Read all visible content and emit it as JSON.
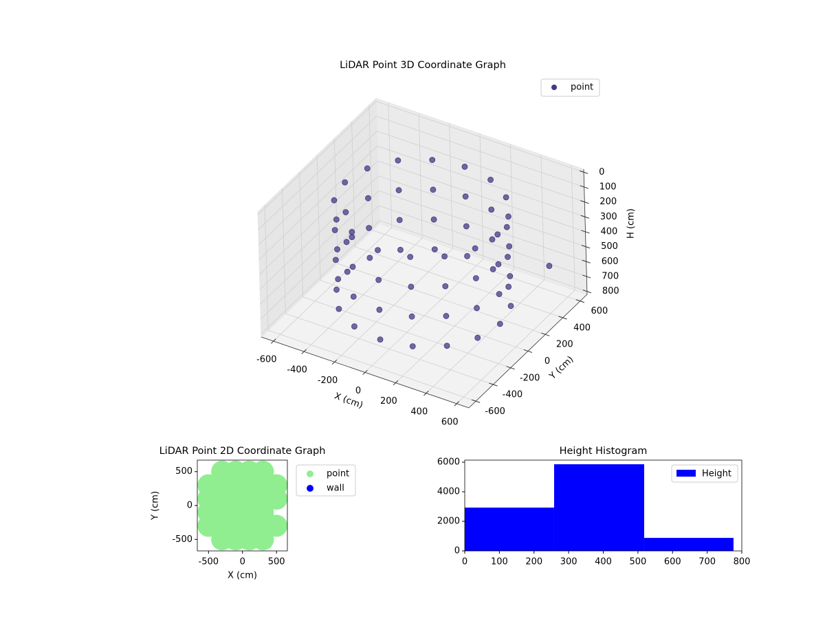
{
  "chart_data": [
    {
      "type": "scatter3d",
      "title": "LiDAR Point 3D Coordinate Graph",
      "xlabel": "X (cm)",
      "ylabel": "Y (cm)",
      "zlabel": "H (cm)",
      "xlim": [
        -680,
        680
      ],
      "ylim": [
        -680,
        680
      ],
      "zlim": [
        820,
        -20
      ],
      "xticks": [
        -600,
        -400,
        -200,
        0,
        200,
        400,
        600
      ],
      "yticks": [
        -600,
        -400,
        -200,
        0,
        200,
        400,
        600
      ],
      "zticks": [
        0,
        100,
        200,
        300,
        400,
        500,
        600,
        700,
        800
      ],
      "grid": true,
      "legend": "upper right",
      "series": [
        {
          "name": "point",
          "color": "#443983",
          "x": [
            500,
            462,
            354,
            191,
            0,
            -191,
            -354,
            -462,
            -500,
            -462,
            -354,
            -191,
            0,
            191,
            354,
            462,
            500,
            462,
            354,
            191,
            0,
            -191,
            -354,
            -462,
            -500,
            -462,
            -354,
            -191,
            0,
            191,
            354,
            462,
            500,
            462,
            354,
            191,
            0,
            -191,
            -354,
            -462,
            -500,
            -462,
            -354,
            -191,
            0,
            191,
            354,
            462,
            500,
            462,
            354,
            191,
            0,
            -191,
            -354,
            -462,
            -500,
            -462,
            -354,
            -191,
            0,
            191,
            354,
            462,
            -640,
            600
          ],
          "y": [
            0,
            191,
            354,
            462,
            500,
            462,
            354,
            191,
            0,
            -191,
            -354,
            -462,
            -500,
            -462,
            -354,
            -191,
            0,
            191,
            354,
            462,
            500,
            462,
            354,
            191,
            0,
            -191,
            -354,
            -462,
            -500,
            -462,
            -354,
            -191,
            0,
            191,
            354,
            462,
            500,
            462,
            354,
            191,
            0,
            -191,
            -354,
            -462,
            -500,
            -462,
            -354,
            -191,
            0,
            191,
            354,
            462,
            500,
            462,
            354,
            191,
            0,
            -191,
            -354,
            -462,
            -500,
            -462,
            -354,
            -191,
            300,
            400
          ],
          "z": [
            100,
            100,
            100,
            100,
            100,
            100,
            100,
            100,
            100,
            100,
            100,
            100,
            100,
            100,
            100,
            100,
            300,
            300,
            300,
            300,
            300,
            300,
            300,
            300,
            300,
            300,
            300,
            300,
            300,
            300,
            300,
            300,
            500,
            500,
            500,
            500,
            500,
            500,
            500,
            500,
            500,
            500,
            500,
            500,
            500,
            500,
            500,
            500,
            700,
            700,
            700,
            700,
            700,
            700,
            700,
            700,
            700,
            700,
            700,
            700,
            700,
            700,
            700,
            700,
            650,
            500
          ]
        }
      ]
    },
    {
      "type": "scatter",
      "title": "LiDAR Point 2D Coordinate Graph",
      "xlabel": "X (cm)",
      "ylabel": "Y (cm)",
      "xlim": [
        -665,
        660
      ],
      "ylim": [
        -670,
        670
      ],
      "xticks": [
        -500,
        0,
        500
      ],
      "yticks": [
        -500,
        0,
        500
      ],
      "legend": "outside right",
      "series": [
        {
          "name": "point",
          "color": "#90ee90",
          "x": [
            -300,
            -100,
            100,
            300,
            -500,
            -300,
            -100,
            100,
            300,
            500,
            -500,
            -300,
            -100,
            100,
            300,
            500,
            -500,
            -300,
            -100,
            100,
            300,
            -500,
            -300,
            -100,
            100,
            300,
            500,
            -300,
            -100,
            100,
            300
          ],
          "y": [
            500,
            500,
            500,
            500,
            300,
            300,
            300,
            300,
            300,
            300,
            100,
            100,
            100,
            100,
            100,
            100,
            -100,
            -100,
            -100,
            -100,
            -100,
            -300,
            -300,
            -300,
            -300,
            -300,
            -300,
            -500,
            -500,
            -500,
            -500
          ]
        },
        {
          "name": "wall",
          "color": "#0000ff",
          "x": [],
          "y": []
        }
      ]
    },
    {
      "type": "histogram",
      "title": "Height Histogram",
      "xlim": [
        0,
        800
      ],
      "ylim": [
        0,
        6140
      ],
      "xticks": [
        0,
        100,
        200,
        300,
        400,
        500,
        600,
        700,
        800
      ],
      "yticks": [
        0,
        2000,
        4000,
        6000
      ],
      "legend": "upper right",
      "bins": [
        0,
        258,
        518,
        776
      ],
      "series": [
        {
          "name": "Height",
          "color": "#0000ff",
          "values": [
            2930,
            5860,
            880
          ]
        }
      ]
    }
  ]
}
